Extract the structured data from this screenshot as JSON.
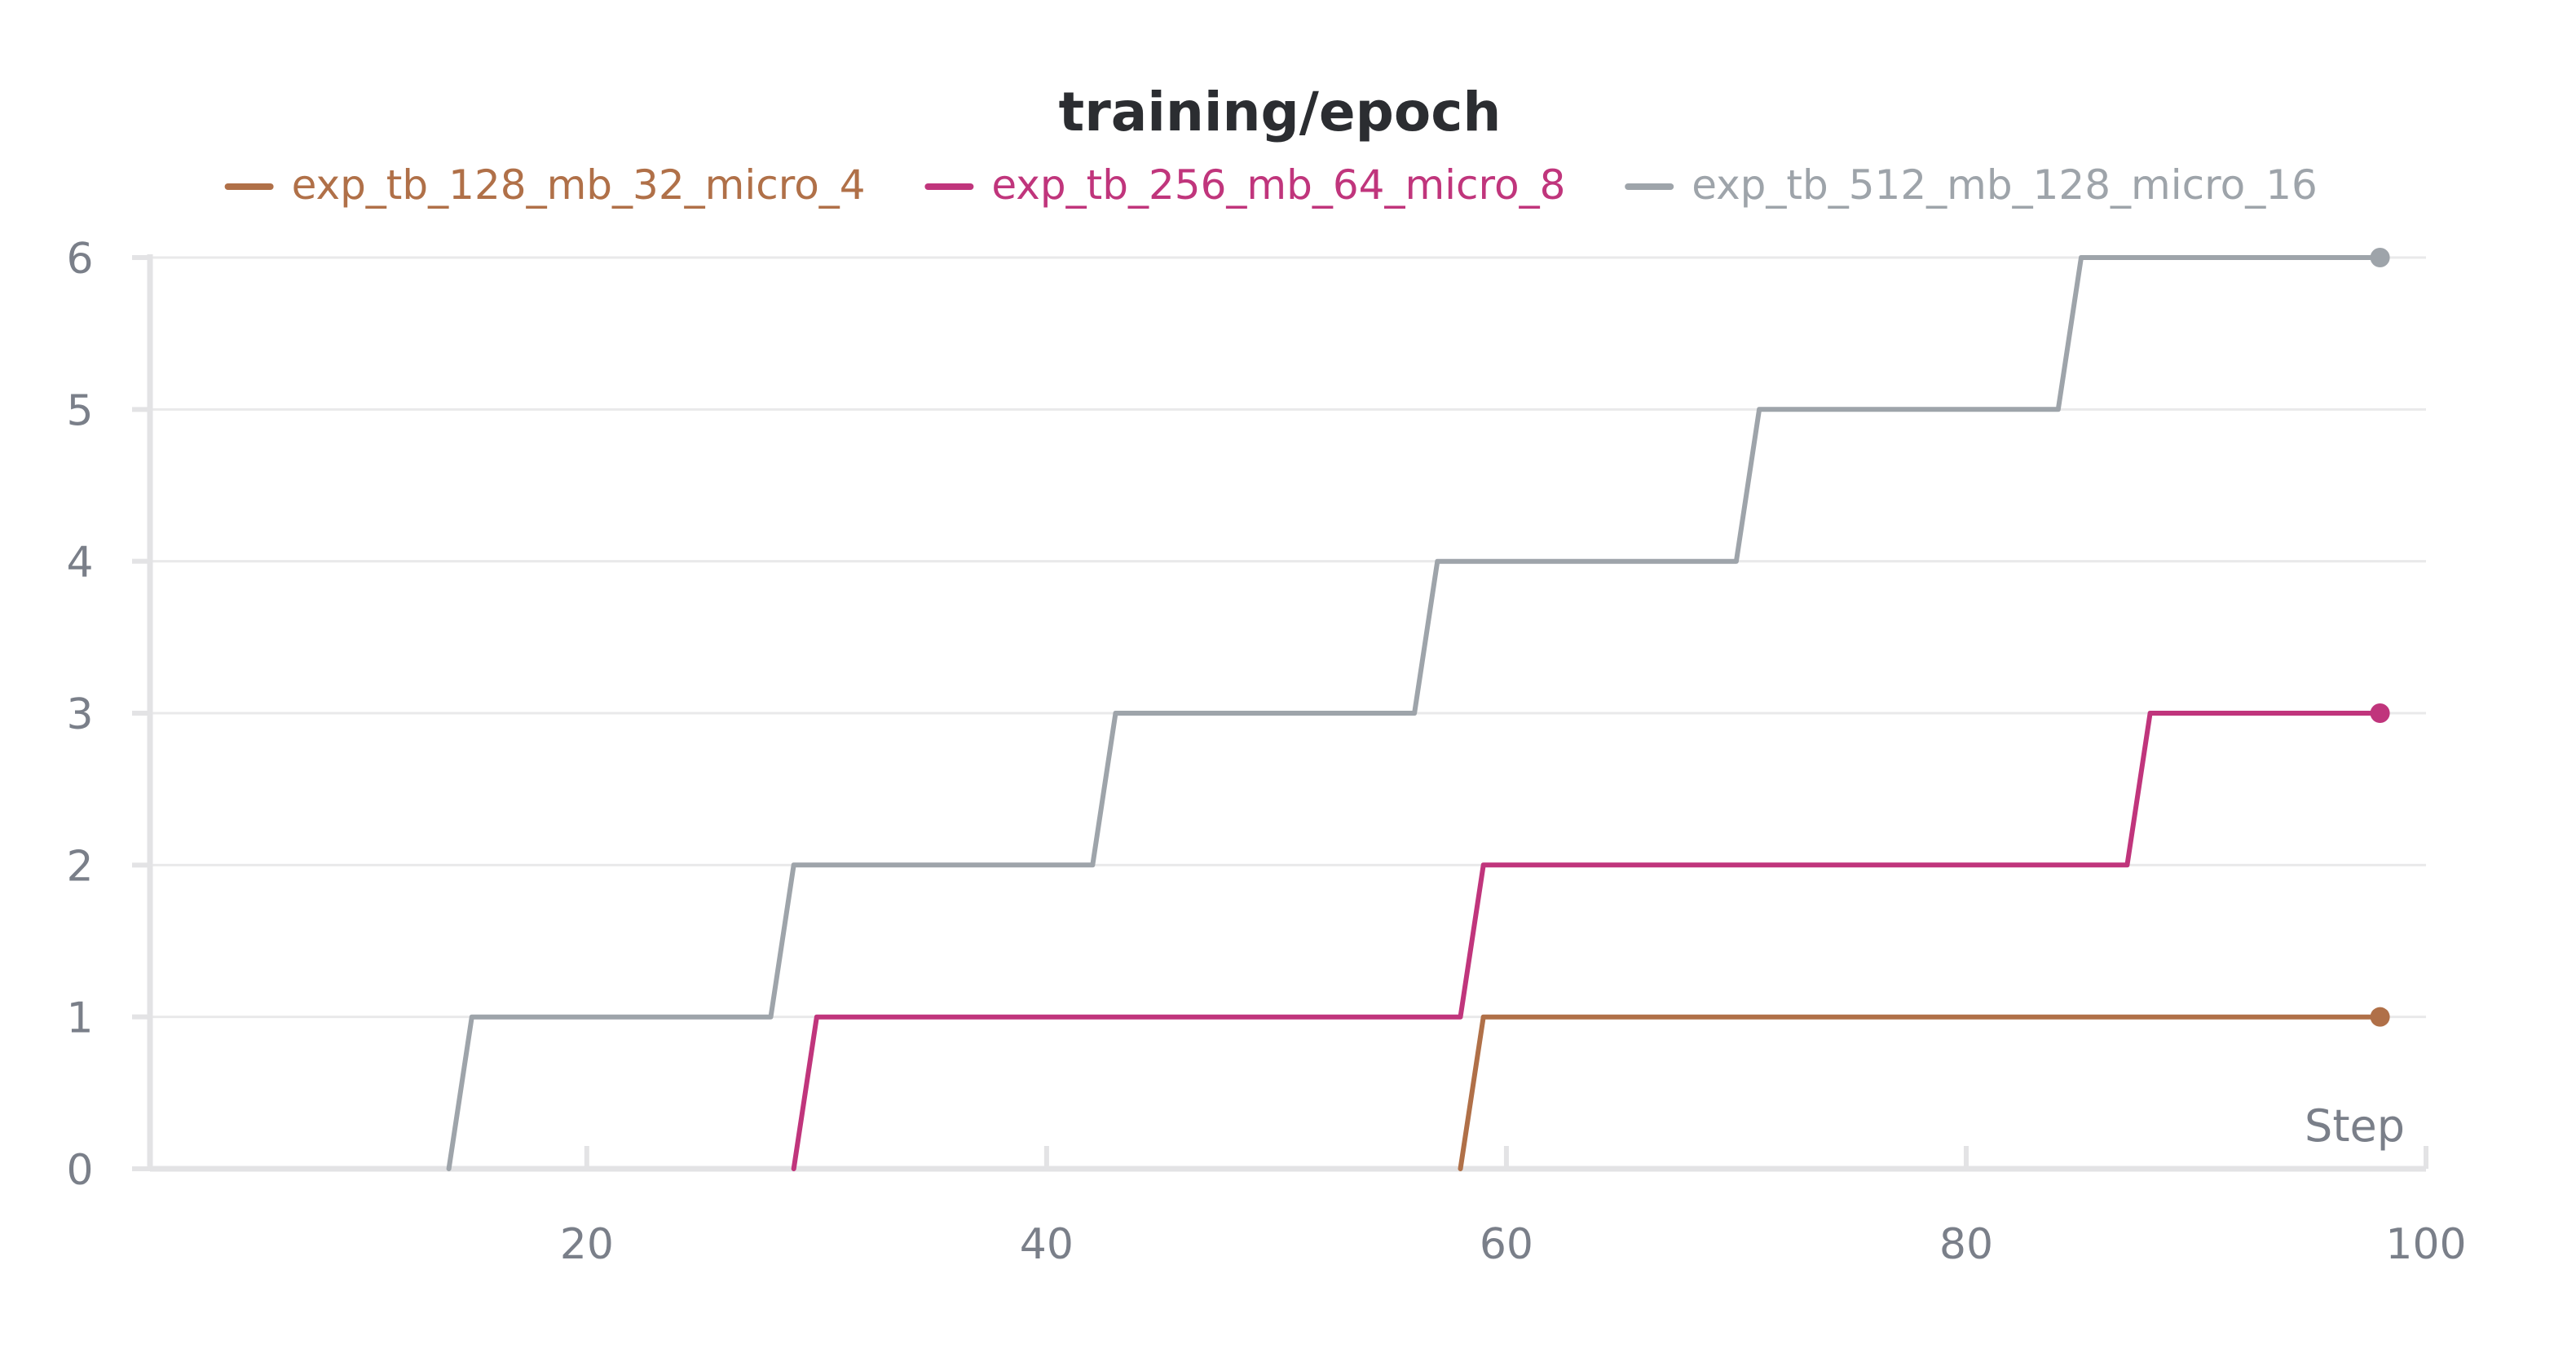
{
  "chart_data": {
    "type": "line",
    "title": "training/epoch",
    "xlabel": "Step",
    "ylabel": "",
    "xlim": [
      1,
      100
    ],
    "ylim": [
      0,
      6
    ],
    "x_ticks": [
      20,
      40,
      60,
      80,
      100
    ],
    "y_ticks": [
      0,
      1,
      2,
      3,
      4,
      5,
      6
    ],
    "grid": true,
    "legend_position": "top",
    "interpolation": "step",
    "series": [
      {
        "name": "exp_tb_128_mb_32_micro_4",
        "color": "#b07048",
        "points": [
          [
            58,
            0
          ],
          [
            59,
            1
          ],
          [
            98,
            1
          ]
        ]
      },
      {
        "name": "exp_tb_256_mb_64_micro_8",
        "color": "#c0357c",
        "points": [
          [
            29,
            0
          ],
          [
            30,
            1
          ],
          [
            58,
            1
          ],
          [
            59,
            2
          ],
          [
            87,
            2
          ],
          [
            88,
            3
          ],
          [
            98,
            3
          ]
        ]
      },
      {
        "name": "exp_tb_512_mb_128_micro_16",
        "color": "#9ea4aa",
        "points": [
          [
            14,
            0
          ],
          [
            15,
            1
          ],
          [
            28,
            1
          ],
          [
            29,
            2
          ],
          [
            42,
            2
          ],
          [
            43,
            3
          ],
          [
            56,
            3
          ],
          [
            57,
            4
          ],
          [
            70,
            4
          ],
          [
            71,
            5
          ],
          [
            84,
            5
          ],
          [
            85,
            6
          ],
          [
            98,
            6
          ]
        ]
      }
    ]
  }
}
